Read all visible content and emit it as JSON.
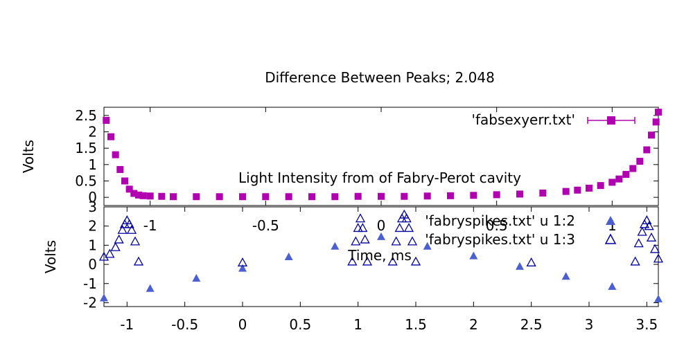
{
  "chart_data": [
    {
      "type": "scatter",
      "title": "Difference Between Peaks; 2.048",
      "subtitle": "Light Intensity from of Fabry-Perot cavity",
      "ylabel": "Volts",
      "xlabel": "",
      "xlim": [
        -1.2,
        1.2
      ],
      "ylim": [
        -0.25,
        2.75
      ],
      "yticks": [
        "0",
        "0.5",
        "1",
        "1.5",
        "2",
        "2.5"
      ],
      "ytick_values": [
        0,
        0.5,
        1,
        1.5,
        2,
        2.5
      ],
      "xticks": [
        "-1",
        "-0.5",
        "0",
        "0.5",
        "1"
      ],
      "xtick_values": [
        -1,
        -0.5,
        0,
        0.5,
        1
      ],
      "legend_position": "top-right",
      "series": [
        {
          "name": "'fabsexyerr.txt'",
          "color": "#b000b0",
          "marker": "square-with-xerrorbars",
          "x": [
            -1.19,
            -1.17,
            -1.15,
            -1.13,
            -1.11,
            -1.09,
            -1.07,
            -1.05,
            -1.03,
            -1.0,
            -0.95,
            -0.9,
            -0.8,
            -0.7,
            -0.6,
            -0.5,
            -0.4,
            -0.3,
            -0.2,
            -0.1,
            0.0,
            0.1,
            0.2,
            0.3,
            0.4,
            0.5,
            0.6,
            0.7,
            0.8,
            0.85,
            0.9,
            0.95,
            1.0,
            1.03,
            1.06,
            1.09,
            1.12,
            1.15,
            1.17,
            1.19,
            1.2
          ],
          "y": [
            2.35,
            1.85,
            1.3,
            0.85,
            0.5,
            0.25,
            0.12,
            0.07,
            0.05,
            0.04,
            0.03,
            0.02,
            0.02,
            0.02,
            0.02,
            0.02,
            0.02,
            0.02,
            0.02,
            0.03,
            0.03,
            0.03,
            0.04,
            0.05,
            0.06,
            0.08,
            0.1,
            0.13,
            0.18,
            0.22,
            0.28,
            0.36,
            0.46,
            0.56,
            0.7,
            0.88,
            1.1,
            1.45,
            1.9,
            2.3,
            2.6
          ]
        }
      ]
    },
    {
      "type": "scatter",
      "title": "",
      "xlabel": "Time, ms",
      "ylabel": "Volts",
      "xlim": [
        -1.2,
        3.6
      ],
      "ylim": [
        -2.2,
        3.0
      ],
      "yticks": [
        "-2",
        "-1",
        "0",
        "1",
        "2",
        "3"
      ],
      "ytick_values": [
        -2,
        -1,
        0,
        1,
        2,
        3
      ],
      "xticks": [
        "-1",
        "-0.5",
        "0",
        "0.5",
        "1",
        "1.5",
        "2",
        "2.5",
        "3",
        "3.5"
      ],
      "xtick_values": [
        -1,
        -0.5,
        0,
        0.5,
        1,
        1.5,
        2,
        2.5,
        3,
        3.5
      ],
      "legend_position": "top-right",
      "series": [
        {
          "name": "'fabryspikes.txt' u 1:2",
          "color": "#4a5fd0",
          "marker": "filled-triangle",
          "x": [
            -1.2,
            -0.8,
            -0.4,
            0.0,
            0.4,
            0.8,
            1.2,
            1.6,
            2.0,
            2.4,
            2.8,
            3.2,
            3.6
          ],
          "y": [
            -1.75,
            -1.25,
            -0.72,
            -0.2,
            0.4,
            0.95,
            1.45,
            0.95,
            0.45,
            -0.1,
            -0.62,
            -1.15,
            -1.8
          ]
        },
        {
          "name": "'fabryspikes.txt' u 1:3",
          "color": "#0000a0",
          "marker": "open-triangle",
          "x": [
            -1.2,
            -1.15,
            -1.1,
            -1.07,
            -1.04,
            -1.02,
            -1.0,
            -0.98,
            -0.96,
            -0.93,
            -0.9,
            0.0,
            0.95,
            0.98,
            1.0,
            1.02,
            1.04,
            1.06,
            1.08,
            1.3,
            1.33,
            1.36,
            1.38,
            1.4,
            1.42,
            1.44,
            1.47,
            1.5,
            2.5,
            3.4,
            3.43,
            3.46,
            3.48,
            3.5,
            3.52,
            3.54,
            3.57,
            3.6
          ],
          "y": [
            0.4,
            0.55,
            0.9,
            1.3,
            1.8,
            2.1,
            2.3,
            2.1,
            1.8,
            1.2,
            0.15,
            0.1,
            0.15,
            1.2,
            1.9,
            2.4,
            1.9,
            1.3,
            0.15,
            0.15,
            1.2,
            1.9,
            2.4,
            2.6,
            2.4,
            1.9,
            1.2,
            0.15,
            0.1,
            0.15,
            1.1,
            1.7,
            2.1,
            2.3,
            2.0,
            1.4,
            0.8,
            0.3
          ]
        }
      ]
    }
  ]
}
